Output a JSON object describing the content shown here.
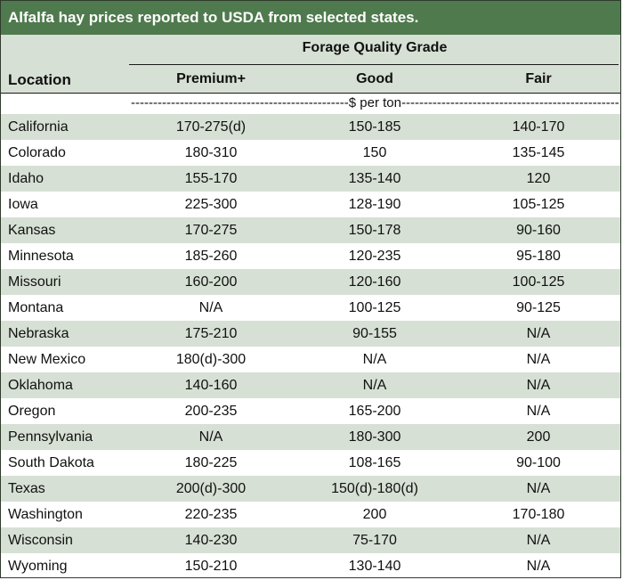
{
  "title": "Alfalfa hay prices reported to USDA from selected states.",
  "group_header": "Forage Quality Grade",
  "columns": {
    "location": "Location",
    "c1": "Premium+",
    "c2": "Good",
    "c3": "Fair"
  },
  "unit_line": "-------------------------------------------------$ per ton-------------------------------------------------",
  "rows": [
    {
      "location": "California",
      "premium": "170-275(d)",
      "good": "150-185",
      "fair": "140-170"
    },
    {
      "location": "Colorado",
      "premium": "180-310",
      "good": "150",
      "fair": "135-145"
    },
    {
      "location": "Idaho",
      "premium": "155-170",
      "good": "135-140",
      "fair": "120"
    },
    {
      "location": "Iowa",
      "premium": "225-300",
      "good": "128-190",
      "fair": "105-125"
    },
    {
      "location": "Kansas",
      "premium": "170-275",
      "good": "150-178",
      "fair": "90-160"
    },
    {
      "location": "Minnesota",
      "premium": "185-260",
      "good": "120-235",
      "fair": "95-180"
    },
    {
      "location": "Missouri",
      "premium": "160-200",
      "good": "120-160",
      "fair": "100-125"
    },
    {
      "location": "Montana",
      "premium": "N/A",
      "good": "100-125",
      "fair": "90-125"
    },
    {
      "location": "Nebraska",
      "premium": "175-210",
      "good": "90-155",
      "fair": "N/A"
    },
    {
      "location": "New Mexico",
      "premium": "180(d)-300",
      "good": "N/A",
      "fair": "N/A"
    },
    {
      "location": "Oklahoma",
      "premium": "140-160",
      "good": "N/A",
      "fair": "N/A"
    },
    {
      "location": "Oregon",
      "premium": "200-235",
      "good": "165-200",
      "fair": "N/A"
    },
    {
      "location": "Pennsylvania",
      "premium": "N/A",
      "good": "180-300",
      "fair": "200"
    },
    {
      "location": "South Dakota",
      "premium": "180-225",
      "good": "108-165",
      "fair": "90-100"
    },
    {
      "location": "Texas",
      "premium": "200(d)-300",
      "good": "150(d)-180(d)",
      "fair": "N/A"
    },
    {
      "location": "Washington",
      "premium": "220-235",
      "good": "200",
      "fair": "170-180"
    },
    {
      "location": "Wisconsin",
      "premium": "140-230",
      "good": "75-170",
      "fair": "N/A"
    },
    {
      "location": "Wyoming",
      "premium": "150-210",
      "good": "130-140",
      "fair": "N/A"
    }
  ],
  "colors": {
    "title_bg": "#4f7a4d",
    "band": "#d6e0d4"
  }
}
